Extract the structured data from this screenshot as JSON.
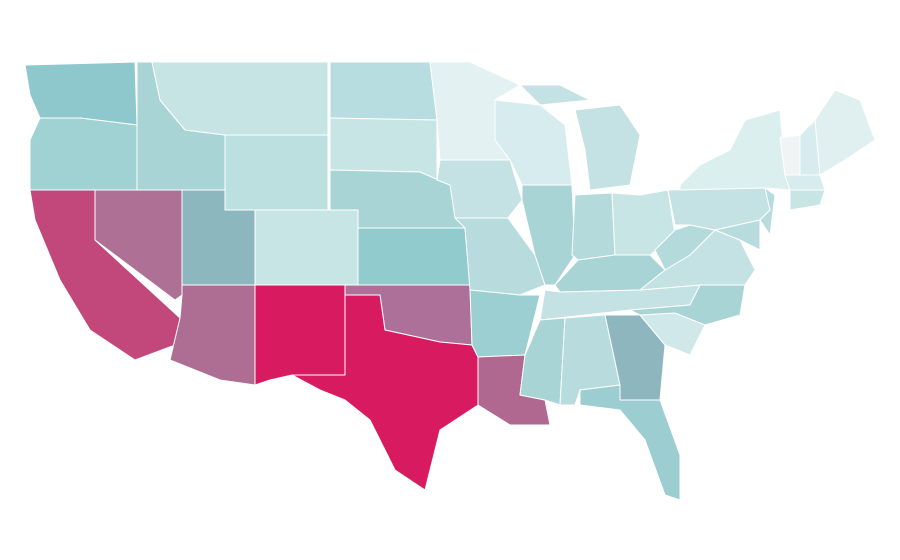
{
  "map": {
    "regions": [
      {
        "color": "#8ec8cc"
      },
      {
        "color": "#a0d1d3"
      },
      {
        "color": "#c2487c"
      },
      {
        "color": "#ae7094"
      },
      {
        "color": "#a8d4d6"
      },
      {
        "color": "#c6e4e4"
      },
      {
        "color": "#bcdfe0"
      },
      {
        "color": "#8db7bf"
      },
      {
        "color": "#c8e5e5"
      },
      {
        "color": "#ae6e93"
      },
      {
        "color": "#d81b60"
      },
      {
        "color": "#b8dde0"
      },
      {
        "color": "#c8e5e5"
      },
      {
        "color": "#a8d4d6"
      },
      {
        "color": "#92cbce"
      },
      {
        "color": "#ad7098"
      },
      {
        "color": "#d81b60"
      },
      {
        "color": "#e3f1f2"
      },
      {
        "color": "#c4e2e3"
      },
      {
        "color": "#b8dcde"
      },
      {
        "color": "#9ccfd2"
      },
      {
        "color": "#b06890"
      },
      {
        "color": "#d6ecee"
      },
      {
        "color": "#a8d4d6"
      },
      {
        "color": "#c4e2e3"
      },
      {
        "color": "#b4dadc"
      },
      {
        "color": "#c8e5e5"
      },
      {
        "color": "#a8d4d6"
      },
      {
        "color": "#c4e2e3"
      },
      {
        "color": "#a8d4d6"
      },
      {
        "color": "#b8dcde"
      },
      {
        "color": "#8eb6bf"
      },
      {
        "color": "#9ccdd1"
      },
      {
        "color": "#d0e8e9"
      },
      {
        "color": "#a8d4d6"
      },
      {
        "color": "#c4e2e3"
      },
      {
        "color": "#b4dadc"
      },
      {
        "color": "#c4e2e3"
      },
      {
        "color": "#dcefef"
      },
      {
        "color": "#b8dcde"
      },
      {
        "color": "#b8dcde"
      },
      {
        "color": "#f0f4f4"
      },
      {
        "color": "#d6ecee"
      },
      {
        "color": "#e0f0f0"
      },
      {
        "color": "#d6ecee"
      },
      {
        "color": "#c8e5e5"
      }
    ]
  }
}
